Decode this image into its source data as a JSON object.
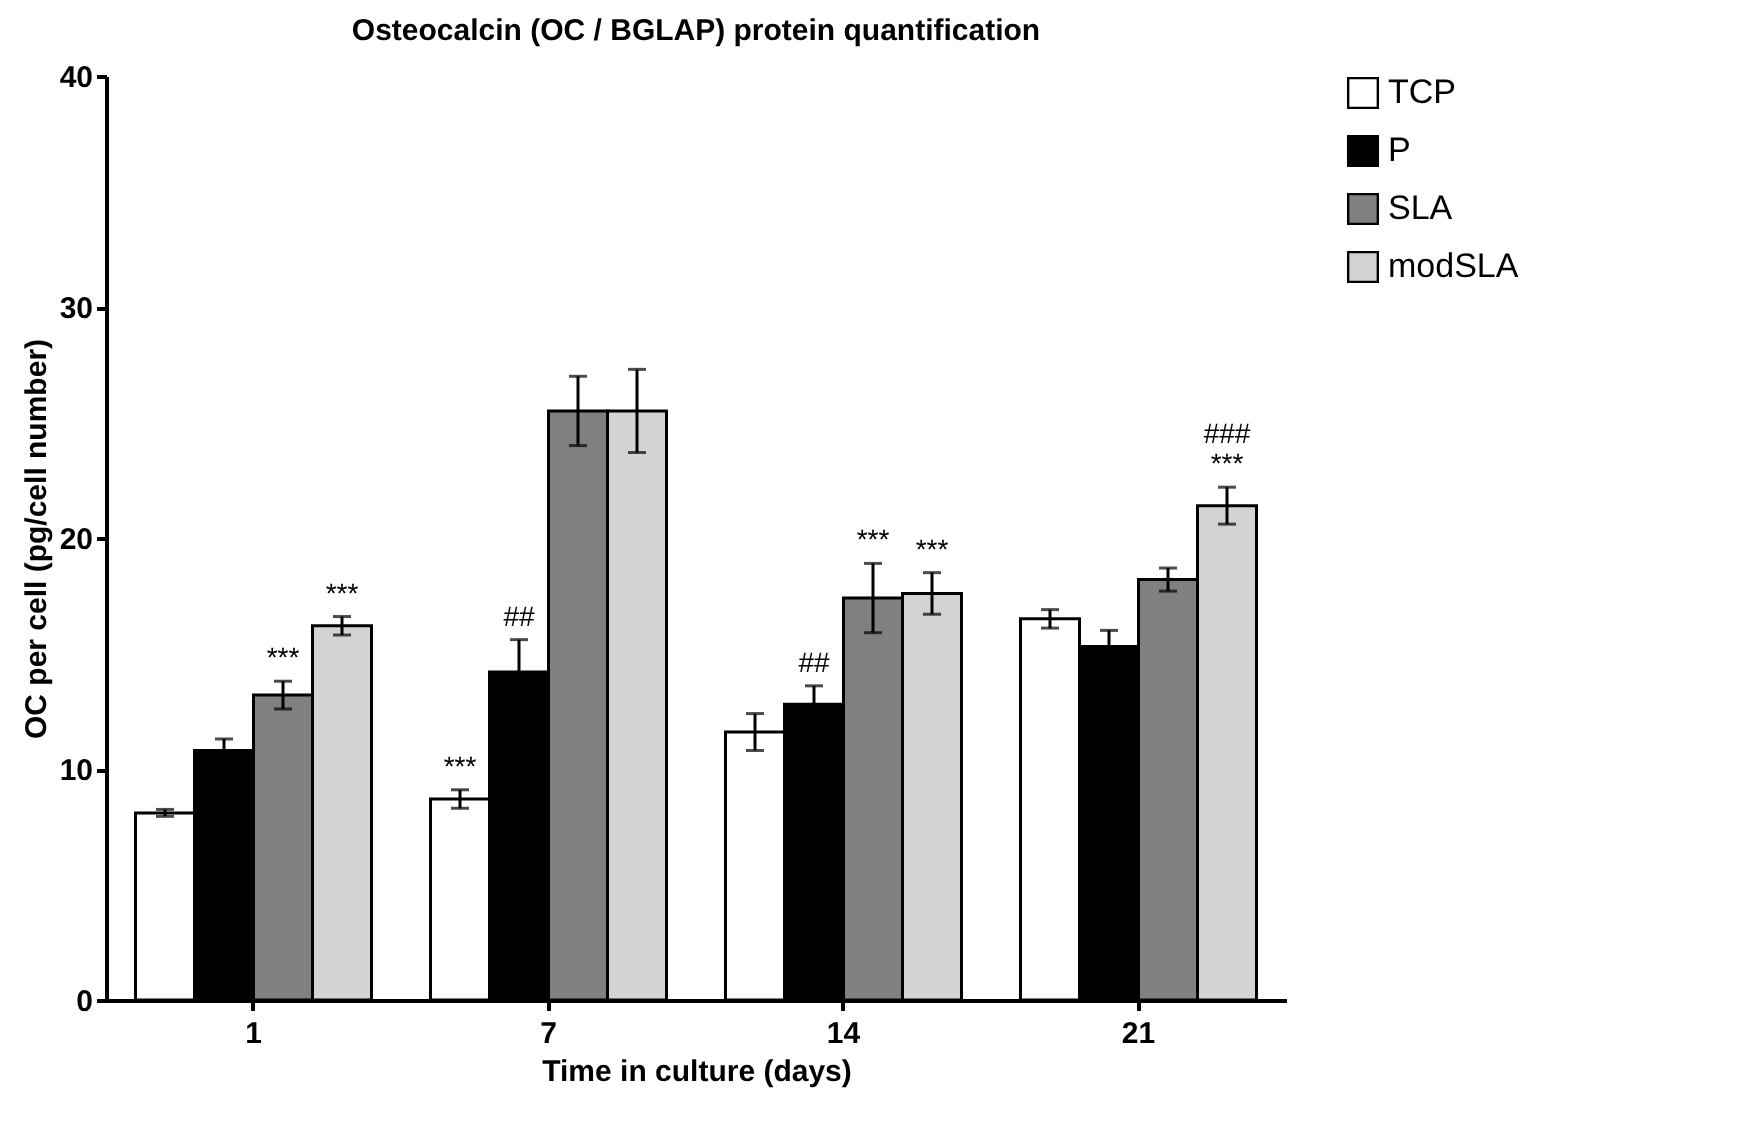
{
  "chart_data": {
    "type": "bar",
    "title": "Osteocalcin (OC / BGLAP) protein quantification",
    "xlabel": "Time in culture (days)",
    "ylabel": "OC per cell (pg/cell number)",
    "categories": [
      "1",
      "7",
      "14",
      "21"
    ],
    "series": [
      {
        "name": "TCP",
        "color": "#ffffff",
        "values": [
          8.1,
          8.7,
          11.6,
          16.5
        ],
        "errors": [
          0.15,
          0.4,
          0.8,
          0.4
        ],
        "value_labels": [
          null,
          "***",
          null,
          null
        ]
      },
      {
        "name": "P",
        "color": "#000000",
        "values": [
          10.8,
          14.2,
          12.8,
          15.3
        ],
        "errors": [
          0.5,
          1.4,
          0.8,
          0.7
        ],
        "value_labels": [
          null,
          "##",
          "##",
          null
        ]
      },
      {
        "name": "SLA",
        "color": "#808080",
        "values": [
          13.2,
          25.5,
          17.4,
          18.2
        ],
        "errors": [
          0.6,
          1.5,
          1.5,
          0.5
        ],
        "value_labels": [
          "***",
          null,
          "***",
          null
        ]
      },
      {
        "name": "modSLA",
        "color": "#d3d3d3",
        "values": [
          16.2,
          25.5,
          17.6,
          21.4
        ],
        "errors": [
          0.4,
          1.8,
          0.9,
          0.8
        ],
        "value_labels": [
          "***",
          null,
          "***",
          "###\n***"
        ]
      }
    ],
    "ylim": [
      0,
      40
    ],
    "yticks": [
      0,
      10,
      20,
      30,
      40
    ],
    "legend": "top right"
  }
}
